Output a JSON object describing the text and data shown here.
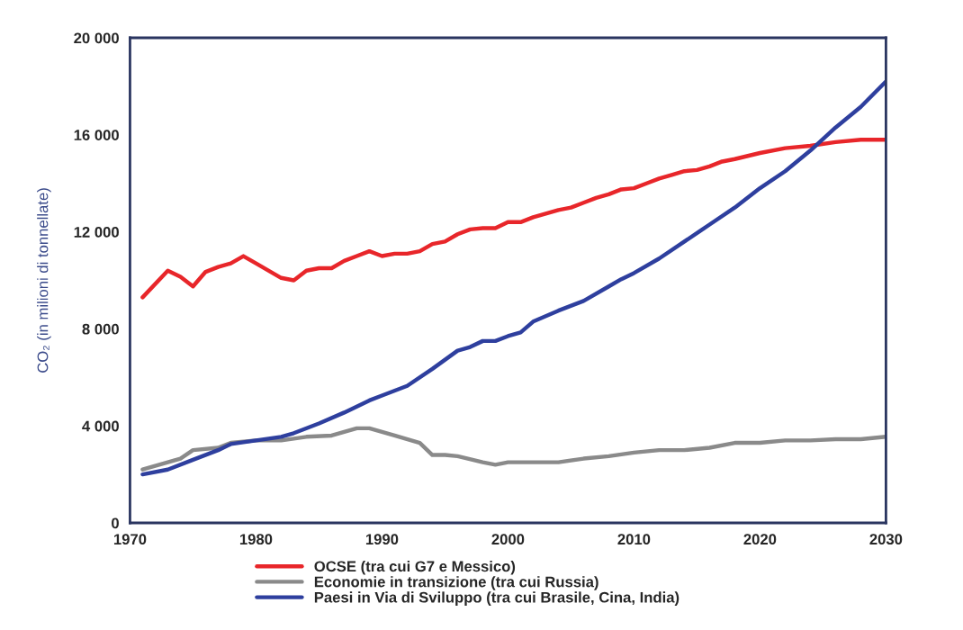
{
  "chart_data": {
    "type": "line",
    "ylabel": "CO₂ (in milioni di tonnellate)",
    "xlim": [
      1970,
      2030
    ],
    "xticks": [
      1970,
      1980,
      1990,
      2000,
      2010,
      2020,
      2030
    ],
    "ylim": [
      0,
      20000
    ],
    "yticks": [
      {
        "value": 0,
        "label": "0"
      },
      {
        "value": 4000,
        "label": "4 000"
      },
      {
        "value": 8000,
        "label": "8 000"
      },
      {
        "value": 12000,
        "label": "12 000"
      },
      {
        "value": 16000,
        "label": "16 000"
      },
      {
        "value": 20000,
        "label": "20 000"
      }
    ],
    "grid": false,
    "legend": "bottom",
    "marker": "none",
    "line_style": "solid",
    "series": [
      {
        "name": "OCSE (tra cui G7 e Messico)",
        "color": "#e8262a",
        "x": [
          1971,
          1973,
          1974,
          1975,
          1976,
          1977,
          1978,
          1979,
          1980,
          1982,
          1983,
          1984,
          1985,
          1986,
          1987,
          1988,
          1989,
          1990,
          1991,
          1992,
          1993,
          1994,
          1995,
          1996,
          1997,
          1998,
          1999,
          2000,
          2001,
          2002,
          2004,
          2005,
          2006,
          2007,
          2008,
          2009,
          2010,
          2011,
          2012,
          2013,
          2014,
          2015,
          2016,
          2017,
          2018,
          2020,
          2022,
          2024,
          2026,
          2028,
          2030
        ],
        "values": [
          9300,
          10400,
          10150,
          9750,
          10350,
          10550,
          10700,
          11000,
          10700,
          10100,
          10000,
          10400,
          10500,
          10500,
          10800,
          11000,
          11200,
          11000,
          11100,
          11100,
          11200,
          11500,
          11600,
          11900,
          12100,
          12150,
          12150,
          12400,
          12400,
          12600,
          12900,
          13000,
          13200,
          13400,
          13550,
          13750,
          13800,
          14000,
          14200,
          14350,
          14500,
          14550,
          14700,
          14900,
          15000,
          15250,
          15450,
          15550,
          15700,
          15800,
          15800
        ]
      },
      {
        "name": "Economie in transizione (tra cui Russia)",
        "color": "#8a8a8a",
        "x": [
          1971,
          1973,
          1974,
          1975,
          1977,
          1978,
          1980,
          1982,
          1984,
          1986,
          1987,
          1988,
          1989,
          1990,
          1991,
          1993,
          1994,
          1995,
          1996,
          1998,
          1999,
          2000,
          2004,
          2006,
          2008,
          2010,
          2012,
          2014,
          2016,
          2018,
          2020,
          2022,
          2024,
          2026,
          2028,
          2030
        ],
        "values": [
          2200,
          2500,
          2650,
          3000,
          3100,
          3300,
          3400,
          3400,
          3550,
          3600,
          3750,
          3900,
          3900,
          3750,
          3600,
          3300,
          2800,
          2800,
          2750,
          2500,
          2400,
          2500,
          2500,
          2650,
          2750,
          2900,
          3000,
          3000,
          3100,
          3300,
          3300,
          3400,
          3400,
          3450,
          3450,
          3550
        ]
      },
      {
        "name": "Paesi in Via di Sviluppo (tra cui Brasile, Cina, India)",
        "color": "#2e3f9e",
        "x": [
          1971,
          1973,
          1975,
          1977,
          1978,
          1980,
          1982,
          1983,
          1985,
          1987,
          1989,
          1990,
          1992,
          1994,
          1996,
          1997,
          1998,
          1999,
          2000,
          2001,
          2002,
          2004,
          2006,
          2008,
          2009,
          2010,
          2012,
          2014,
          2016,
          2018,
          2020,
          2022,
          2024,
          2026,
          2028,
          2030
        ],
        "values": [
          2000,
          2200,
          2600,
          3000,
          3250,
          3400,
          3550,
          3700,
          4100,
          4550,
          5050,
          5250,
          5650,
          6350,
          7100,
          7250,
          7500,
          7500,
          7700,
          7850,
          8300,
          8750,
          9150,
          9750,
          10050,
          10300,
          10900,
          11600,
          12300,
          13000,
          13800,
          14500,
          15350,
          16300,
          17150,
          18200
        ]
      }
    ]
  }
}
